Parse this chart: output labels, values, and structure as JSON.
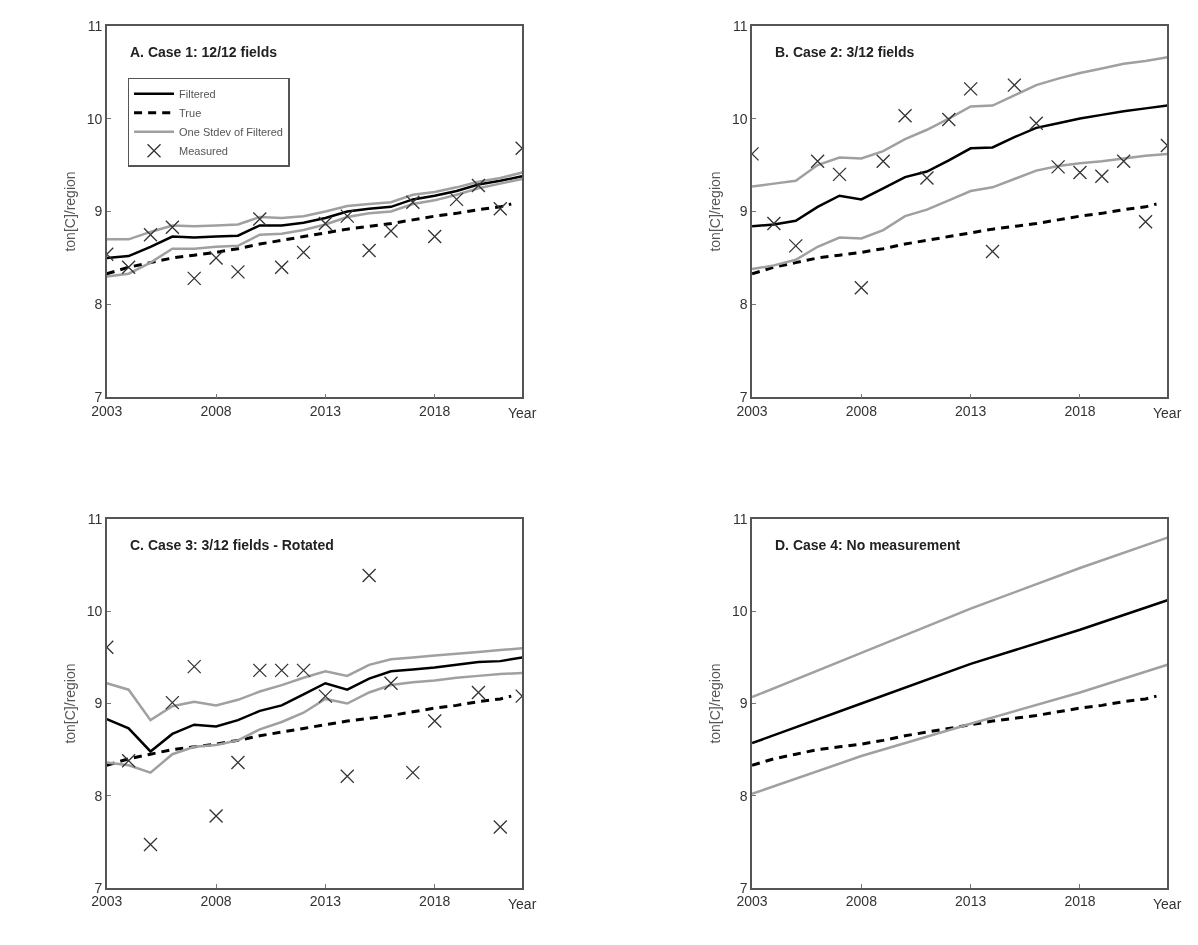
{
  "chart_data": [
    {
      "type": "line",
      "title": "A. Case 1: 12/12 fields",
      "xlabel": "Year",
      "ylabel": "ton[C]/region",
      "xlim": [
        2003,
        2022
      ],
      "xticks": [
        2003,
        2008,
        2013,
        2018
      ],
      "ylim": [
        7,
        11
      ],
      "yticks": [
        7,
        8,
        9,
        10,
        11
      ],
      "legend": "top left",
      "x": [
        2003,
        2004,
        2005,
        2006,
        2007,
        2008,
        2009,
        2010,
        2011,
        2012,
        2013,
        2014,
        2015,
        2016,
        2017,
        2018,
        2019,
        2020,
        2021,
        2022
      ],
      "series": [
        {
          "name": "Filtered",
          "color": "#000000",
          "line_style": "solid",
          "values": [
            8.5,
            8.52,
            8.62,
            8.73,
            8.72,
            8.73,
            8.74,
            8.85,
            8.85,
            8.88,
            8.93,
            9.0,
            9.03,
            9.05,
            9.13,
            9.17,
            9.22,
            9.29,
            9.33,
            9.38
          ]
        },
        {
          "name": "True",
          "color": "#000000",
          "line_style": "dashed",
          "x": [
            2003,
            2004,
            2005,
            2006,
            2007,
            2008,
            2009,
            2010,
            2011,
            2012,
            2013,
            2014,
            2015,
            2016,
            2017,
            2018,
            2019,
            2020,
            2021,
            2021.5
          ],
          "values": [
            8.33,
            8.4,
            8.45,
            8.5,
            8.53,
            8.56,
            8.6,
            8.65,
            8.69,
            8.73,
            8.77,
            8.81,
            8.84,
            8.87,
            8.91,
            8.95,
            8.98,
            9.02,
            9.05,
            9.08
          ]
        },
        {
          "name": "One Stdev of Filtered",
          "color": "#a0a0a0",
          "line_style": "solid",
          "values": [
            8.7,
            8.7,
            8.78,
            8.85,
            8.84,
            8.85,
            8.86,
            8.94,
            8.93,
            8.95,
            9.0,
            9.06,
            9.08,
            9.1,
            9.18,
            9.21,
            9.26,
            9.32,
            9.36,
            9.42
          ]
        },
        {
          "color": "#a0a0a0",
          "line_style": "solid",
          "values": [
            8.3,
            8.33,
            8.45,
            8.6,
            8.6,
            8.62,
            8.63,
            8.75,
            8.76,
            8.8,
            8.86,
            8.94,
            8.98,
            9.0,
            9.08,
            9.12,
            9.18,
            9.25,
            9.3,
            9.35
          ]
        },
        {
          "name": "Measured",
          "type": "scatter",
          "marker": "cross",
          "color": "#333333",
          "values": [
            8.54,
            8.4,
            8.75,
            8.83,
            8.28,
            8.5,
            8.35,
            8.92,
            8.4,
            8.56,
            8.87,
            8.95,
            8.58,
            8.79,
            9.1,
            8.73,
            9.13,
            9.28,
            9.03,
            9.68
          ]
        }
      ]
    },
    {
      "type": "line",
      "title": "B. Case 2: 3/12 fields",
      "xlabel": "Year",
      "ylabel": "ton[C]/region",
      "xlim": [
        2003,
        2022
      ],
      "xticks": [
        2003,
        2008,
        2013,
        2018
      ],
      "ylim": [
        7,
        11
      ],
      "yticks": [
        7,
        8,
        9,
        10,
        11
      ],
      "x": [
        2003,
        2004,
        2005,
        2006,
        2007,
        2008,
        2009,
        2010,
        2011,
        2012,
        2013,
        2014,
        2015,
        2016,
        2017,
        2018,
        2019,
        2020,
        2021,
        2022
      ],
      "series": [
        {
          "color": "#000000",
          "line_style": "solid",
          "values": [
            8.84,
            8.86,
            8.9,
            9.05,
            9.17,
            9.13,
            9.25,
            9.37,
            9.43,
            9.55,
            9.68,
            9.69,
            9.8,
            9.9,
            9.95,
            10.0,
            10.04,
            10.08,
            10.11,
            10.14
          ]
        },
        {
          "color": "#000000",
          "line_style": "dashed",
          "x": [
            2003,
            2004,
            2005,
            2006,
            2007,
            2008,
            2009,
            2010,
            2011,
            2012,
            2013,
            2014,
            2015,
            2016,
            2017,
            2018,
            2019,
            2020,
            2021,
            2021.5
          ],
          "values": [
            8.33,
            8.4,
            8.45,
            8.5,
            8.53,
            8.56,
            8.6,
            8.65,
            8.69,
            8.73,
            8.77,
            8.81,
            8.84,
            8.87,
            8.91,
            8.95,
            8.98,
            9.02,
            9.05,
            9.08
          ]
        },
        {
          "color": "#a0a0a0",
          "line_style": "solid",
          "values": [
            9.27,
            9.3,
            9.33,
            9.5,
            9.58,
            9.57,
            9.65,
            9.78,
            9.88,
            10.0,
            10.13,
            10.14,
            10.25,
            10.36,
            10.43,
            10.49,
            10.54,
            10.59,
            10.62,
            10.66
          ]
        },
        {
          "color": "#a0a0a0",
          "line_style": "solid",
          "values": [
            8.38,
            8.42,
            8.48,
            8.62,
            8.72,
            8.71,
            8.8,
            8.95,
            9.02,
            9.12,
            9.22,
            9.26,
            9.35,
            9.44,
            9.49,
            9.52,
            9.54,
            9.57,
            9.6,
            9.62
          ]
        },
        {
          "type": "scatter",
          "marker": "cross",
          "color": "#333333",
          "values": [
            9.62,
            8.87,
            8.63,
            9.54,
            9.4,
            8.18,
            9.54,
            10.03,
            9.36,
            9.99,
            10.32,
            8.57,
            10.36,
            9.95,
            9.48,
            9.42,
            9.38,
            9.54,
            8.89,
            9.71
          ]
        }
      ]
    },
    {
      "type": "line",
      "title": "C. Case 3: 3/12 fields - Rotated",
      "xlabel": "Year",
      "ylabel": "ton[C]/region",
      "xlim": [
        2003,
        2022
      ],
      "xticks": [
        2003,
        2008,
        2013,
        2018
      ],
      "ylim": [
        7,
        11
      ],
      "yticks": [
        7,
        8,
        9,
        10,
        11
      ],
      "x": [
        2003,
        2004,
        2005,
        2006,
        2007,
        2008,
        2009,
        2010,
        2011,
        2012,
        2013,
        2014,
        2015,
        2016,
        2017,
        2018,
        2019,
        2020,
        2021,
        2022
      ],
      "series": [
        {
          "color": "#000000",
          "line_style": "solid",
          "values": [
            8.83,
            8.73,
            8.48,
            8.67,
            8.77,
            8.75,
            8.82,
            8.92,
            8.98,
            9.1,
            9.22,
            9.15,
            9.27,
            9.35,
            9.37,
            9.39,
            9.42,
            9.45,
            9.46,
            9.5
          ]
        },
        {
          "color": "#000000",
          "line_style": "dashed",
          "x": [
            2003,
            2004,
            2005,
            2006,
            2007,
            2008,
            2009,
            2010,
            2011,
            2012,
            2013,
            2014,
            2015,
            2016,
            2017,
            2018,
            2019,
            2020,
            2021,
            2021.5
          ],
          "values": [
            8.33,
            8.4,
            8.45,
            8.5,
            8.53,
            8.56,
            8.6,
            8.65,
            8.69,
            8.73,
            8.77,
            8.81,
            8.84,
            8.87,
            8.91,
            8.95,
            8.98,
            9.02,
            9.05,
            9.08
          ]
        },
        {
          "color": "#a0a0a0",
          "line_style": "solid",
          "values": [
            9.22,
            9.15,
            8.82,
            8.97,
            9.02,
            8.98,
            9.04,
            9.13,
            9.2,
            9.28,
            9.35,
            9.3,
            9.42,
            9.48,
            9.5,
            9.52,
            9.54,
            9.56,
            9.58,
            9.6
          ]
        },
        {
          "color": "#a0a0a0",
          "line_style": "solid",
          "values": [
            8.36,
            8.33,
            8.25,
            8.45,
            8.53,
            8.55,
            8.6,
            8.72,
            8.8,
            8.9,
            9.05,
            9.0,
            9.12,
            9.2,
            9.23,
            9.25,
            9.28,
            9.3,
            9.32,
            9.33
          ]
        },
        {
          "type": "scatter",
          "marker": "cross",
          "color": "#333333",
          "values": [
            9.61,
            8.38,
            7.47,
            9.01,
            9.4,
            7.78,
            8.36,
            9.36,
            9.36,
            9.36,
            9.08,
            8.21,
            10.39,
            9.22,
            8.25,
            8.81,
            null,
            9.12,
            7.66,
            9.08
          ]
        }
      ]
    },
    {
      "type": "line",
      "title": "D. Case 4: No measurement",
      "xlabel": "Year",
      "ylabel": "ton[C]/region",
      "xlim": [
        2003,
        2022
      ],
      "xticks": [
        2003,
        2008,
        2013,
        2018
      ],
      "ylim": [
        7,
        11
      ],
      "yticks": [
        7,
        8,
        9,
        10,
        11
      ],
      "x": [
        2003,
        2008,
        2013,
        2018,
        2022
      ],
      "series": [
        {
          "color": "#000000",
          "line_style": "solid",
          "values": [
            8.57,
            9.0,
            9.43,
            9.8,
            10.12
          ]
        },
        {
          "color": "#000000",
          "line_style": "dashed",
          "x": [
            2003,
            2004,
            2005,
            2006,
            2007,
            2008,
            2009,
            2010,
            2011,
            2012,
            2013,
            2014,
            2015,
            2016,
            2017,
            2018,
            2019,
            2020,
            2021,
            2021.5
          ],
          "values": [
            8.33,
            8.4,
            8.45,
            8.5,
            8.53,
            8.56,
            8.6,
            8.65,
            8.69,
            8.73,
            8.77,
            8.81,
            8.84,
            8.87,
            8.91,
            8.95,
            8.98,
            9.02,
            9.05,
            9.08
          ]
        },
        {
          "color": "#a0a0a0",
          "line_style": "solid",
          "values": [
            9.07,
            9.55,
            10.03,
            10.47,
            10.8
          ]
        },
        {
          "color": "#a0a0a0",
          "line_style": "solid",
          "values": [
            8.02,
            8.43,
            8.78,
            9.12,
            9.42
          ]
        }
      ]
    }
  ]
}
